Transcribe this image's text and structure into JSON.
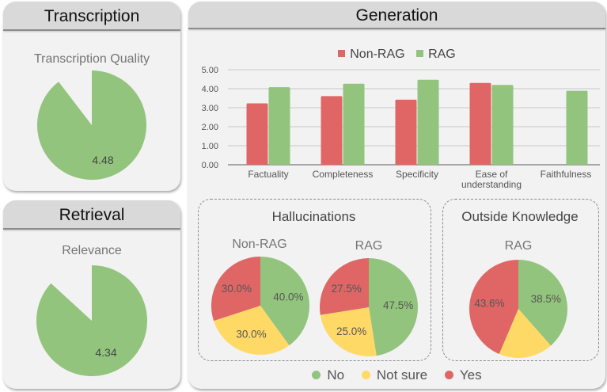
{
  "panels": {
    "transcription": {
      "title": "Transcription",
      "metric_label": "Transcription Quality",
      "value_label": "4.48"
    },
    "retrieval": {
      "title": "Retrieval",
      "metric_label": "Relevance",
      "value_label": "4.34"
    },
    "generation": {
      "title": "Generation",
      "bar_legend": [
        "Non-RAG",
        "RAG"
      ],
      "hallucinations_title": "Hallucinations",
      "outside_knowledge_title": "Outside Knowledge",
      "pie_legend": [
        "No",
        "Not sure",
        "Yes"
      ]
    }
  },
  "colors": {
    "red": "#e06666",
    "green": "#93c47d",
    "yellow": "#ffd966"
  },
  "chart_data": [
    {
      "type": "pie",
      "title": "Transcription Quality",
      "note": "score gauge out of 5",
      "value": 4.48,
      "max": 5,
      "label": "4.48"
    },
    {
      "type": "pie",
      "title": "Relevance",
      "note": "score gauge out of 5",
      "value": 4.34,
      "max": 5,
      "label": "4.34"
    },
    {
      "type": "bar",
      "title": "",
      "categories": [
        "Factuality",
        "Completeness",
        "Specificity",
        "Ease of understanding",
        "Faithfulness"
      ],
      "category_lines": [
        [
          "Factuality"
        ],
        [
          "Completeness"
        ],
        [
          "Specificity"
        ],
        [
          "Ease of",
          "understanding"
        ],
        [
          "Faithfulness"
        ]
      ],
      "series": [
        {
          "name": "Non-RAG",
          "color": "#e06666",
          "values": [
            3.23,
            3.61,
            3.42,
            4.3,
            null
          ]
        },
        {
          "name": "RAG",
          "color": "#93c47d",
          "values": [
            4.08,
            4.26,
            4.47,
            4.2,
            3.89
          ]
        }
      ],
      "ylim": [
        0,
        5
      ],
      "yticks": [
        "0.00",
        "1.00",
        "2.00",
        "3.00",
        "4.00",
        "5.00"
      ],
      "grid": true,
      "legend": "top-center",
      "xlabel": "",
      "ylabel": ""
    },
    {
      "type": "pie",
      "group": "Hallucinations",
      "title": "Non-RAG",
      "slices": [
        {
          "name": "No",
          "value": 40.0,
          "label": "40.0%",
          "color": "#93c47d"
        },
        {
          "name": "Not sure",
          "value": 30.0,
          "label": "30.0%",
          "color": "#ffd966"
        },
        {
          "name": "Yes",
          "value": 30.0,
          "label": "30.0%",
          "color": "#e06666"
        }
      ]
    },
    {
      "type": "pie",
      "group": "Hallucinations",
      "title": "RAG",
      "slices": [
        {
          "name": "No",
          "value": 47.5,
          "label": "47.5%",
          "color": "#93c47d"
        },
        {
          "name": "Not sure",
          "value": 25.0,
          "label": "25.0%",
          "color": "#ffd966"
        },
        {
          "name": "Yes",
          "value": 27.5,
          "label": "27.5%",
          "color": "#e06666"
        }
      ]
    },
    {
      "type": "pie",
      "group": "Outside Knowledge",
      "title": "RAG",
      "slices": [
        {
          "name": "No",
          "value": 38.5,
          "label": "38.5%",
          "color": "#93c47d"
        },
        {
          "name": "Not sure",
          "value": 17.9,
          "label": "",
          "color": "#ffd966"
        },
        {
          "name": "Yes",
          "value": 43.6,
          "label": "43.6%",
          "color": "#e06666"
        }
      ],
      "legend": "bottom"
    }
  ]
}
